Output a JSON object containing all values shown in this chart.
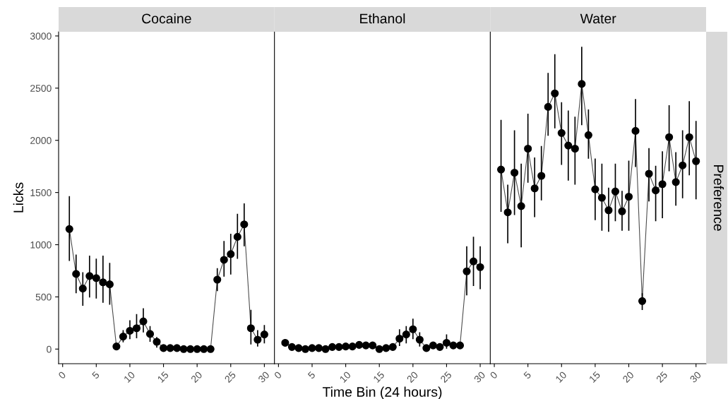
{
  "chart_data": [
    {
      "type": "line",
      "title": "Cocaine",
      "ylabel": "Licks",
      "xlim": [
        -0.6,
        31.5
      ],
      "ylim": [
        -140,
        3040
      ],
      "xticks": [
        0,
        5,
        10,
        15,
        20,
        25,
        30
      ],
      "yticks": [
        0,
        500,
        1000,
        1500,
        2000,
        2500,
        3000
      ],
      "grid": false,
      "legend": false,
      "marker": "circle",
      "line_style": "solid",
      "series": [
        {
          "color": "#000000",
          "x": [
            1,
            2,
            3,
            4,
            5,
            6,
            7,
            8,
            9,
            10,
            11,
            12,
            13,
            14,
            15,
            16,
            17,
            18,
            19,
            20,
            21,
            22,
            23,
            24,
            25,
            26,
            27,
            28,
            29,
            30
          ],
          "values": [
            1150,
            720,
            580,
            700,
            680,
            640,
            620,
            25,
            120,
            175,
            200,
            265,
            145,
            70,
            10,
            10,
            10,
            0,
            0,
            0,
            0,
            0,
            665,
            855,
            910,
            1075,
            1195,
            200,
            90,
            140
          ],
          "errors": [
            [
              850,
              1460
            ],
            [
              540,
              900
            ],
            [
              420,
              730
            ],
            [
              500,
              890
            ],
            [
              490,
              860
            ],
            [
              450,
              890
            ],
            [
              430,
              820
            ],
            null,
            [
              70,
              175
            ],
            [
              100,
              270
            ],
            [
              110,
              330
            ],
            [
              165,
              385
            ],
            [
              75,
              215
            ],
            [
              20,
              110
            ],
            null,
            null,
            null,
            null,
            null,
            null,
            null,
            null,
            [
              560,
              770
            ],
            [
              700,
              1030
            ],
            [
              720,
              1100
            ],
            [
              870,
              1290
            ],
            [
              990,
              1390
            ],
            [
              50,
              370
            ],
            [
              30,
              175
            ],
            [
              60,
              225
            ]
          ]
        }
      ]
    },
    {
      "type": "line",
      "title": "Ethanol",
      "xlabel": "Time Bin (24 hours)",
      "xlim": [
        -0.6,
        31.5
      ],
      "ylim": [
        -140,
        3040
      ],
      "xticks": [
        0,
        5,
        10,
        15,
        20,
        25,
        30
      ],
      "yticks": [
        0,
        500,
        1000,
        1500,
        2000,
        2500,
        3000
      ],
      "tick_labels": "x",
      "grid": false,
      "legend": false,
      "marker": "circle",
      "line_style": "solid",
      "series": [
        {
          "color": "#000000",
          "x": [
            1,
            2,
            3,
            4,
            5,
            6,
            7,
            8,
            9,
            10,
            11,
            12,
            13,
            14,
            15,
            16,
            17,
            18,
            19,
            20,
            21,
            22,
            23,
            24,
            25,
            26,
            27,
            28,
            29,
            30
          ],
          "values": [
            60,
            20,
            10,
            0,
            10,
            10,
            0,
            20,
            20,
            25,
            25,
            40,
            35,
            35,
            0,
            10,
            20,
            100,
            140,
            190,
            90,
            10,
            35,
            20,
            60,
            35,
            35,
            745,
            840,
            785
          ],
          "errors": [
            null,
            null,
            null,
            null,
            null,
            null,
            null,
            null,
            null,
            null,
            null,
            null,
            null,
            null,
            null,
            null,
            null,
            [
              35,
              185
            ],
            [
              60,
              215
            ],
            [
              100,
              285
            ],
            [
              30,
              155
            ],
            null,
            null,
            null,
            [
              10,
              135
            ],
            null,
            null,
            [
              520,
              980
            ],
            [
              610,
              1070
            ],
            [
              580,
              980
            ]
          ]
        }
      ]
    },
    {
      "type": "line",
      "title": "Water",
      "annotations": [
        "Preference"
      ],
      "xlim": [
        -0.6,
        31.5
      ],
      "ylim": [
        -140,
        3040
      ],
      "xticks": [
        0,
        5,
        10,
        15,
        20,
        25,
        30
      ],
      "yticks": [
        0,
        500,
        1000,
        1500,
        2000,
        2500,
        3000
      ],
      "tick_labels": "x",
      "grid": false,
      "legend": false,
      "marker": "circle",
      "line_style": "solid",
      "series": [
        {
          "color": "#000000",
          "x": [
            1,
            2,
            3,
            4,
            5,
            6,
            7,
            8,
            9,
            10,
            11,
            12,
            13,
            14,
            15,
            16,
            17,
            18,
            19,
            20,
            21,
            22,
            23,
            24,
            25,
            26,
            27,
            28,
            29,
            30
          ],
          "values": [
            1720,
            1310,
            1690,
            1370,
            1920,
            1540,
            1660,
            2320,
            2450,
            2070,
            1950,
            1920,
            2540,
            2050,
            1530,
            1450,
            1330,
            1510,
            1320,
            1460,
            2090,
            460,
            1680,
            1520,
            1580,
            2030,
            1600,
            1760,
            2030,
            1800
          ],
          "errors": [
            [
              1320,
              2190
            ],
            [
              1020,
              1570
            ],
            [
              1290,
              2090
            ],
            [
              980,
              1770
            ],
            [
              1600,
              2250
            ],
            [
              1270,
              1830
            ],
            [
              1430,
              1940
            ],
            [
              2050,
              2640
            ],
            [
              2120,
              2820
            ],
            [
              1770,
              2360
            ],
            [
              1620,
              2280
            ],
            [
              1580,
              2220
            ],
            [
              2150,
              2890
            ],
            [
              1830,
              2290
            ],
            [
              1240,
              1820
            ],
            [
              1140,
              1770
            ],
            [
              1130,
              1540
            ],
            [
              1230,
              1770
            ],
            [
              1140,
              1510
            ],
            [
              1140,
              1800
            ],
            [
              1750,
              2390
            ],
            [
              380,
              530
            ],
            [
              1420,
              1920
            ],
            [
              1230,
              1750
            ],
            [
              1260,
              1890
            ],
            [
              1710,
              2330
            ],
            [
              1380,
              1880
            ],
            [
              1450,
              2090
            ],
            [
              1670,
              2370
            ],
            [
              1440,
              2180
            ]
          ]
        }
      ]
    }
  ]
}
